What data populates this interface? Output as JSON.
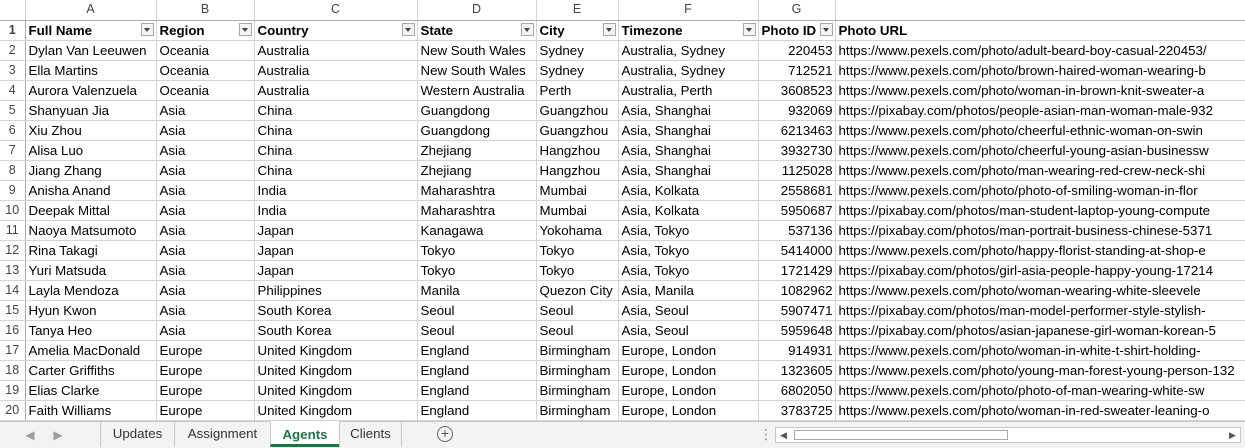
{
  "columns": [
    "A",
    "B",
    "C",
    "D",
    "E",
    "F",
    "G",
    ""
  ],
  "header_row_number": "1",
  "headers": [
    "Full Name",
    "Region",
    "Country",
    "State",
    "City",
    "Timezone",
    "Photo ID",
    "Photo URL"
  ],
  "rows": [
    {
      "n": "2",
      "cells": [
        "Dylan Van Leeuwen",
        "Oceania",
        "Australia",
        "New South Wales",
        "Sydney",
        "Australia, Sydney",
        "220453",
        "https://www.pexels.com/photo/adult-beard-boy-casual-220453/"
      ]
    },
    {
      "n": "3",
      "cells": [
        "Ella Martins",
        "Oceania",
        "Australia",
        "New South Wales",
        "Sydney",
        "Australia, Sydney",
        "712521",
        "https://www.pexels.com/photo/brown-haired-woman-wearing-b"
      ]
    },
    {
      "n": "4",
      "cells": [
        "Aurora Valenzuela",
        "Oceania",
        "Australia",
        "Western Australia",
        "Perth",
        "Australia, Perth",
        "3608523",
        "https://www.pexels.com/photo/woman-in-brown-knit-sweater-a"
      ]
    },
    {
      "n": "5",
      "cells": [
        "Shanyuan Jia",
        "Asia",
        "China",
        "Guangdong",
        "Guangzhou",
        "Asia, Shanghai",
        "932069",
        "https://pixabay.com/photos/people-asian-man-woman-male-932"
      ]
    },
    {
      "n": "6",
      "cells": [
        "Xiu Zhou",
        "Asia",
        "China",
        "Guangdong",
        "Guangzhou",
        "Asia, Shanghai",
        "6213463",
        "https://www.pexels.com/photo/cheerful-ethnic-woman-on-swin"
      ]
    },
    {
      "n": "7",
      "cells": [
        "Alisa Luo",
        "Asia",
        "China",
        "Zhejiang",
        "Hangzhou",
        "Asia, Shanghai",
        "3932730",
        "https://www.pexels.com/photo/cheerful-young-asian-businessw"
      ]
    },
    {
      "n": "8",
      "cells": [
        "Jiang Zhang",
        "Asia",
        "China",
        "Zhejiang",
        "Hangzhou",
        "Asia, Shanghai",
        "1125028",
        "https://www.pexels.com/photo/man-wearing-red-crew-neck-shi"
      ]
    },
    {
      "n": "9",
      "cells": [
        "Anisha Anand",
        "Asia",
        "India",
        "Maharashtra",
        "Mumbai",
        "Asia, Kolkata",
        "2558681",
        "https://www.pexels.com/photo/photo-of-smiling-woman-in-flor"
      ]
    },
    {
      "n": "10",
      "cells": [
        "Deepak Mittal",
        "Asia",
        "India",
        "Maharashtra",
        "Mumbai",
        "Asia, Kolkata",
        "5950687",
        "https://pixabay.com/photos/man-student-laptop-young-compute"
      ]
    },
    {
      "n": "11",
      "cells": [
        "Naoya Matsumoto",
        "Asia",
        "Japan",
        "Kanagawa",
        "Yokohama",
        "Asia, Tokyo",
        "537136",
        "https://pixabay.com/photos/man-portrait-business-chinese-5371"
      ]
    },
    {
      "n": "12",
      "cells": [
        "Rina Takagi",
        "Asia",
        "Japan",
        "Tokyo",
        "Tokyo",
        "Asia, Tokyo",
        "5414000",
        "https://www.pexels.com/photo/happy-florist-standing-at-shop-e"
      ]
    },
    {
      "n": "13",
      "cells": [
        "Yuri Matsuda",
        "Asia",
        "Japan",
        "Tokyo",
        "Tokyo",
        "Asia, Tokyo",
        "1721429",
        "https://pixabay.com/photos/girl-asia-people-happy-young-17214"
      ]
    },
    {
      "n": "14",
      "cells": [
        "Layla Mendoza",
        "Asia",
        "Philippines",
        "Manila",
        "Quezon City",
        "Asia, Manila",
        "1082962",
        "https://www.pexels.com/photo/woman-wearing-white-sleevele"
      ]
    },
    {
      "n": "15",
      "cells": [
        "Hyun Kwon",
        "Asia",
        "South Korea",
        "Seoul",
        "Seoul",
        "Asia, Seoul",
        "5907471",
        "https://pixabay.com/photos/man-model-performer-style-stylish-"
      ]
    },
    {
      "n": "16",
      "cells": [
        "Tanya Heo",
        "Asia",
        "South Korea",
        "Seoul",
        "Seoul",
        "Asia, Seoul",
        "5959648",
        "https://pixabay.com/photos/asian-japanese-girl-woman-korean-5"
      ]
    },
    {
      "n": "17",
      "cells": [
        "Amelia MacDonald",
        "Europe",
        "United Kingdom",
        "England",
        "Birmingham",
        "Europe, London",
        "914931",
        "https://www.pexels.com/photo/woman-in-white-t-shirt-holding-"
      ]
    },
    {
      "n": "18",
      "cells": [
        "Carter Griffiths",
        "Europe",
        "United Kingdom",
        "England",
        "Birmingham",
        "Europe, London",
        "1323605",
        "https://www.pexels.com/photo/young-man-forest-young-person-132"
      ]
    },
    {
      "n": "19",
      "cells": [
        "Elias Clarke",
        "Europe",
        "United Kingdom",
        "England",
        "Birmingham",
        "Europe, London",
        "6802050",
        "https://www.pexels.com/photo/photo-of-man-wearing-white-sw"
      ]
    },
    {
      "n": "20",
      "cells": [
        "Faith Williams",
        "Europe",
        "United Kingdom",
        "England",
        "Birmingham",
        "Europe, London",
        "3783725",
        "https://www.pexels.com/photo/woman-in-red-sweater-leaning-o"
      ]
    }
  ],
  "sheet_tabs": [
    {
      "label": "Updates",
      "active": false
    },
    {
      "label": "Assignment",
      "active": false
    },
    {
      "label": "Agents",
      "active": true
    },
    {
      "label": "Clients",
      "active": false
    }
  ],
  "icons": {
    "prev_sheet": "chevron-left-icon",
    "next_sheet": "chevron-right-icon",
    "add_sheet": "plus-circle-icon",
    "filter": "filter-dropdown-icon"
  },
  "colors": {
    "active_tab": "#217346",
    "gridline": "#d4d4d4"
  }
}
